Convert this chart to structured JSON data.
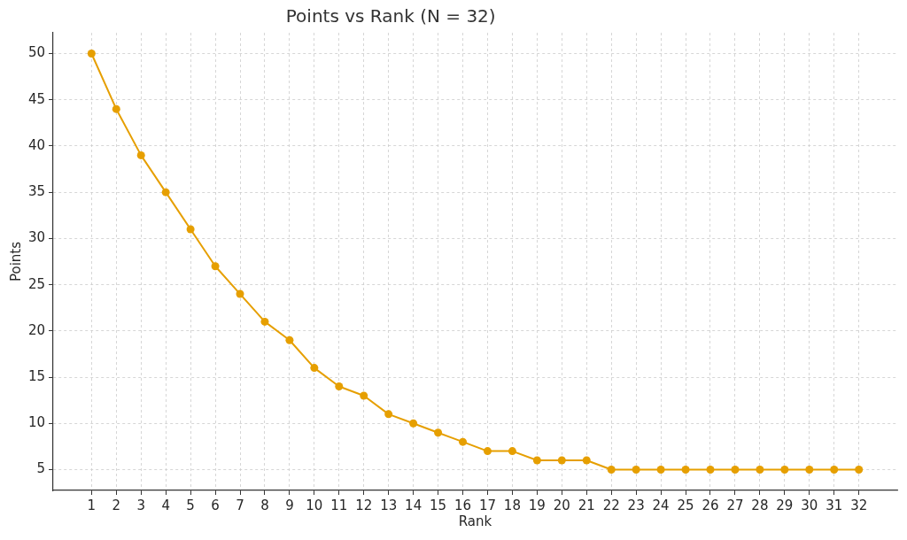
{
  "chart_data": {
    "type": "line",
    "title": "Points vs Rank (N = 32)",
    "xlabel": "Rank",
    "ylabel": "Points",
    "x": [
      1,
      2,
      3,
      4,
      5,
      6,
      7,
      8,
      9,
      10,
      11,
      12,
      13,
      14,
      15,
      16,
      17,
      18,
      19,
      20,
      21,
      22,
      23,
      24,
      25,
      26,
      27,
      28,
      29,
      30,
      31,
      32
    ],
    "values": [
      50,
      44,
      39,
      35,
      31,
      27,
      24,
      21,
      19,
      16,
      14,
      13,
      11,
      10,
      9,
      8,
      7,
      7,
      6,
      6,
      6,
      5,
      5,
      5,
      5,
      5,
      5,
      5,
      5,
      5,
      5,
      5
    ],
    "color": "#e69f00",
    "xlim": [
      -0.55,
      33.55
    ],
    "xticks": [
      1,
      2,
      3,
      4,
      5,
      6,
      7,
      8,
      9,
      10,
      11,
      12,
      13,
      14,
      15,
      16,
      17,
      18,
      19,
      20,
      21,
      22,
      23,
      24,
      25,
      26,
      27,
      28,
      29,
      30,
      31,
      32
    ],
    "ylim": [
      2.75,
      52.25
    ],
    "yticks": [
      5,
      10,
      15,
      20,
      25,
      30,
      35,
      40,
      45,
      50
    ],
    "grid": true,
    "marker": "circle",
    "line_style": "solid"
  }
}
